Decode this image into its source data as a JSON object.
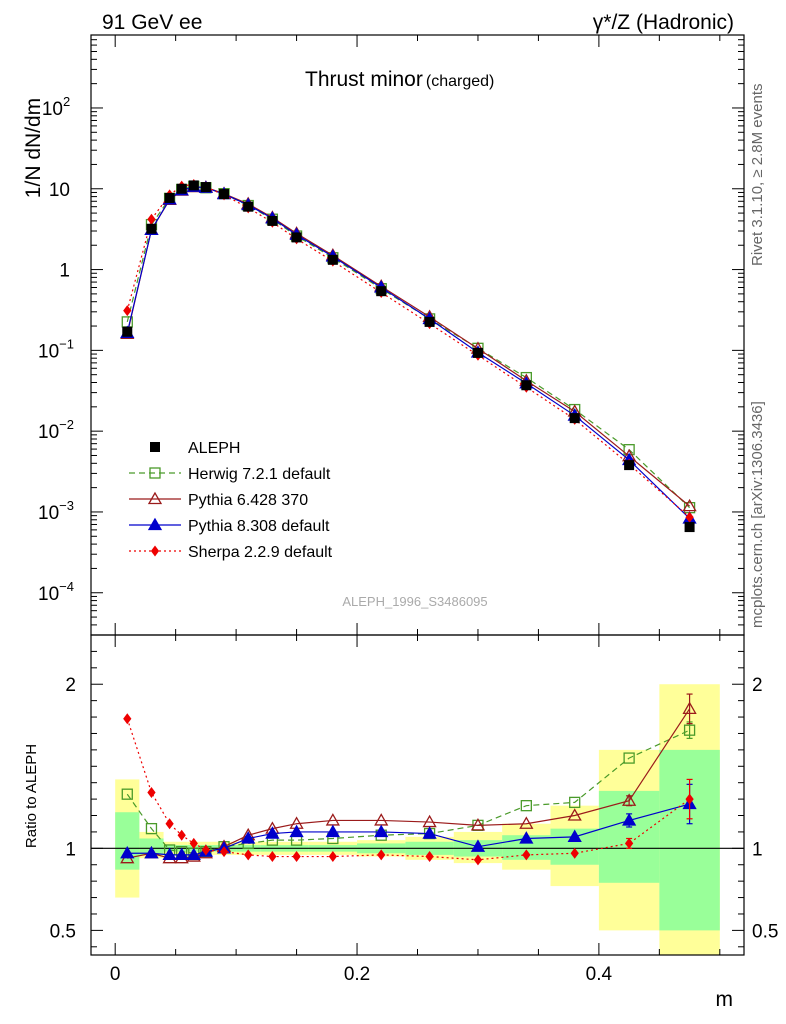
{
  "header": {
    "left": "91 GeV ee",
    "right": "γ*/Z (Hadronic)"
  },
  "side_text": {
    "rivet": "Rivet 3.1.10, ≥ 2.8M events",
    "mcplots": "mcplots.cern.ch [arXiv:1306.3436]"
  },
  "chart_data": {
    "type": "line",
    "title_main": "Thrust minor",
    "title_sub": "(charged)",
    "watermark": "ALEPH_1996_S3486095",
    "xlabel": "m",
    "ylabel_top": "1/N dN/dm",
    "ylabel_bottom": "Ratio to ALEPH",
    "xlim": [
      -0.02,
      0.52
    ],
    "ylim_top": [
      3e-05,
      800
    ],
    "yscale_top": "log",
    "ylim_bottom": [
      0.35,
      2.3
    ],
    "x_ticks": [
      0,
      0.2,
      0.4
    ],
    "x_tick_labels": [
      "0",
      "0.2",
      "0.4"
    ],
    "y_ticks_top": [
      {
        "v": 0.0001,
        "base": "10",
        "exp": "−4"
      },
      {
        "v": 0.001,
        "base": "10",
        "exp": "−3"
      },
      {
        "v": 0.01,
        "base": "10",
        "exp": "−2"
      },
      {
        "v": 0.1,
        "base": "10",
        "exp": "−1"
      },
      {
        "v": 1,
        "base": "1",
        "exp": ""
      },
      {
        "v": 10,
        "base": "10",
        "exp": ""
      },
      {
        "v": 100,
        "base": "10",
        "exp": "2"
      }
    ],
    "y_ticks_bottom": [
      {
        "v": 0.5,
        "label": "0.5"
      },
      {
        "v": 1,
        "label": "1"
      },
      {
        "v": 2,
        "label": "2"
      }
    ],
    "legend_position": "bottom-left",
    "bin_edges": [
      0,
      0.02,
      0.04,
      0.05,
      0.06,
      0.07,
      0.08,
      0.1,
      0.12,
      0.14,
      0.16,
      0.2,
      0.24,
      0.28,
      0.32,
      0.36,
      0.4,
      0.45,
      0.5
    ],
    "x": [
      0.01,
      0.03,
      0.045,
      0.055,
      0.065,
      0.075,
      0.09,
      0.11,
      0.13,
      0.15,
      0.18,
      0.22,
      0.26,
      0.3,
      0.34,
      0.38,
      0.425,
      0.475
    ],
    "band_inner": [
      [
        0.87,
        1.22
      ],
      [
        0.96,
        1.06
      ],
      [
        0.98,
        1.02
      ],
      [
        0.98,
        1.02
      ],
      [
        0.98,
        1.02
      ],
      [
        0.98,
        1.02
      ],
      [
        0.98,
        1.02
      ],
      [
        0.98,
        1.02
      ],
      [
        0.98,
        1.02
      ],
      [
        0.98,
        1.02
      ],
      [
        0.98,
        1.02
      ],
      [
        0.97,
        1.03
      ],
      [
        0.96,
        1.04
      ],
      [
        0.95,
        1.05
      ],
      [
        0.93,
        1.08
      ],
      [
        0.9,
        1.12
      ],
      [
        0.79,
        1.35
      ],
      [
        0.5,
        1.6
      ]
    ],
    "band_outer": [
      [
        0.7,
        1.42
      ],
      [
        0.94,
        1.1
      ],
      [
        0.96,
        1.04
      ],
      [
        0.96,
        1.04
      ],
      [
        0.96,
        1.04
      ],
      [
        0.96,
        1.04
      ],
      [
        0.96,
        1.04
      ],
      [
        0.96,
        1.04
      ],
      [
        0.96,
        1.04
      ],
      [
        0.96,
        1.04
      ],
      [
        0.96,
        1.04
      ],
      [
        0.95,
        1.05
      ],
      [
        0.93,
        1.07
      ],
      [
        0.91,
        1.1
      ],
      [
        0.87,
        1.15
      ],
      [
        0.77,
        1.26
      ],
      [
        0.5,
        1.6
      ],
      [
        0.35,
        2.0
      ]
    ],
    "series": [
      {
        "name": "ALEPH",
        "color": "#000000",
        "marker": "square-filled",
        "values": [
          0.17,
          3.2,
          7.7,
          10.0,
          11.0,
          10.5,
          8.6,
          6.0,
          4.0,
          2.5,
          1.32,
          0.54,
          0.225,
          0.093,
          0.037,
          0.0145,
          0.0038,
          0.00065
        ]
      },
      {
        "name": "Herwig 7.2.1 default",
        "color": "#4a9a2a",
        "marker": "square-open",
        "dash": "6,4",
        "values": [
          0.225,
          3.6,
          7.6,
          9.8,
          10.7,
          10.3,
          8.7,
          6.2,
          4.2,
          2.6,
          1.4,
          0.58,
          0.245,
          0.106,
          0.046,
          0.0185,
          0.0059,
          0.00113
        ],
        "ratio": [
          1.33,
          1.12,
          0.99,
          0.98,
          0.97,
          0.98,
          1.01,
          1.03,
          1.05,
          1.05,
          1.06,
          1.08,
          1.09,
          1.14,
          1.26,
          1.28,
          1.55,
          1.72
        ],
        "ratio_err": [
          0,
          0,
          0,
          0,
          0,
          0,
          0,
          0,
          0,
          0,
          0,
          0,
          0,
          0,
          0,
          0,
          0,
          0.05
        ]
      },
      {
        "name": "Pythia 6.428 370",
        "color": "#9b1b1b",
        "marker": "triangle-open",
        "dash": "",
        "values": [
          0.16,
          3.1,
          7.3,
          9.5,
          10.5,
          10.4,
          8.7,
          6.5,
          4.4,
          2.8,
          1.5,
          0.62,
          0.26,
          0.105,
          0.042,
          0.0175,
          0.0049,
          0.00118
        ],
        "ratio": [
          0.94,
          0.97,
          0.94,
          0.94,
          0.95,
          0.97,
          1.01,
          1.08,
          1.12,
          1.15,
          1.17,
          1.17,
          1.16,
          1.14,
          1.15,
          1.2,
          1.29,
          1.85
        ],
        "ratio_err": [
          0,
          0,
          0,
          0,
          0,
          0,
          0,
          0,
          0,
          0,
          0,
          0,
          0,
          0,
          0,
          0,
          0.03,
          0.09
        ]
      },
      {
        "name": "Pythia 8.308 default",
        "color": "#0000cc",
        "marker": "triangle-filled",
        "dash": "",
        "values": [
          0.165,
          3.1,
          7.4,
          9.6,
          10.6,
          10.3,
          8.6,
          6.3,
          4.3,
          2.7,
          1.45,
          0.6,
          0.245,
          0.094,
          0.039,
          0.0156,
          0.0044,
          0.00083
        ],
        "ratio": [
          0.97,
          0.97,
          0.96,
          0.96,
          0.96,
          0.98,
          1.0,
          1.06,
          1.09,
          1.1,
          1.1,
          1.1,
          1.09,
          1.01,
          1.06,
          1.07,
          1.17,
          1.27
        ],
        "ratio_err": [
          0,
          0,
          0,
          0,
          0,
          0,
          0,
          0,
          0,
          0,
          0,
          0,
          0,
          0,
          0,
          0,
          0.04,
          0.12
        ]
      },
      {
        "name": "Sherpa 2.2.9 default",
        "color": "#ee0000",
        "marker": "diamond-filled",
        "dash": "2,3",
        "values": [
          0.31,
          4.2,
          8.4,
          10.8,
          11.3,
          10.5,
          8.4,
          5.8,
          3.85,
          2.4,
          1.27,
          0.52,
          0.214,
          0.087,
          0.035,
          0.014,
          0.0039,
          0.00086
        ],
        "ratio": [
          1.79,
          1.34,
          1.15,
          1.08,
          1.03,
          0.99,
          0.98,
          0.96,
          0.95,
          0.95,
          0.95,
          0.96,
          0.95,
          0.93,
          0.96,
          0.97,
          1.03,
          1.3
        ],
        "ratio_err": [
          0,
          0,
          0,
          0,
          0,
          0,
          0,
          0,
          0,
          0,
          0,
          0,
          0,
          0,
          0,
          0,
          0.03,
          0.12
        ]
      }
    ]
  }
}
